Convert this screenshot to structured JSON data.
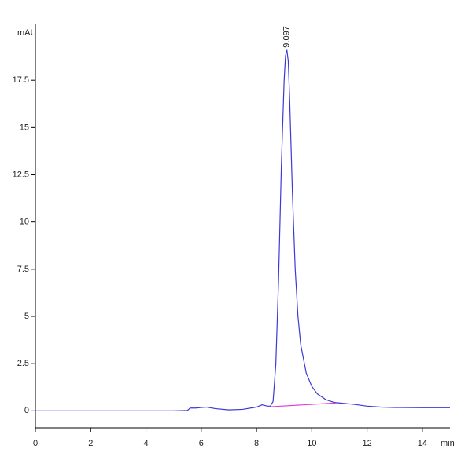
{
  "chart_data": {
    "type": "line",
    "y_label": "mAU",
    "x_label": "min",
    "x": [
      0,
      1,
      2,
      3,
      4,
      5,
      5.5,
      5.6,
      5.8,
      6.0,
      6.2,
      6.5,
      7,
      7.5,
      8.0,
      8.2,
      8.4,
      8.5,
      8.6,
      8.7,
      8.8,
      8.9,
      9.0,
      9.05,
      9.1,
      9.15,
      9.2,
      9.3,
      9.4,
      9.5,
      9.6,
      9.8,
      10,
      10.2,
      10.5,
      10.8,
      11,
      11.5,
      12,
      12.5,
      13,
      14,
      15
    ],
    "values": [
      0,
      0,
      0,
      0,
      0,
      0,
      0.02,
      0.15,
      0.15,
      0.18,
      0.2,
      0.12,
      0.05,
      0.08,
      0.2,
      0.32,
      0.25,
      0.25,
      0.5,
      2.5,
      7,
      13,
      17.5,
      18.8,
      19.1,
      18.5,
      16.5,
      11.5,
      7.5,
      5,
      3.5,
      2,
      1.3,
      0.9,
      0.6,
      0.45,
      0.42,
      0.35,
      0.25,
      0.2,
      0.18,
      0.17,
      0.17
    ],
    "color": "#3a3ad8",
    "baseline": {
      "x": [
        8.5,
        10.9
      ],
      "values": [
        0.22,
        0.42
      ],
      "color": "#e040e0"
    },
    "annotations": [
      {
        "text": "9.097",
        "x": 9.097,
        "y": 19.1
      }
    ],
    "xlim": [
      0,
      15
    ],
    "xticks": [
      0,
      2,
      4,
      6,
      8,
      10,
      12,
      14
    ],
    "ylim": [
      -0.9,
      20.5
    ],
    "yticks": [
      0,
      2.5,
      5,
      7.5,
      10,
      12.5,
      15,
      17.5
    ],
    "grid": false
  }
}
